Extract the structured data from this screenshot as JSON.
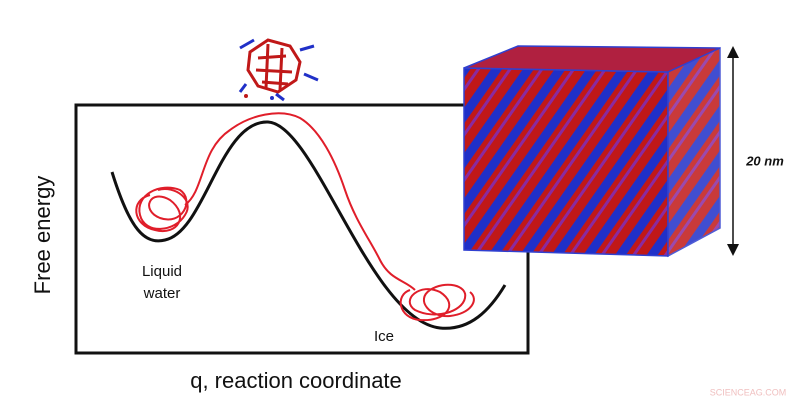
{
  "axes": {
    "y_label": "Free energy",
    "x_label": "q, reaction coordinate"
  },
  "states": {
    "liquid": [
      "Liquid",
      "water"
    ],
    "ice": "Ice"
  },
  "scale_label": "20 nm",
  "watermark": "SCIENCEAG.COM"
}
